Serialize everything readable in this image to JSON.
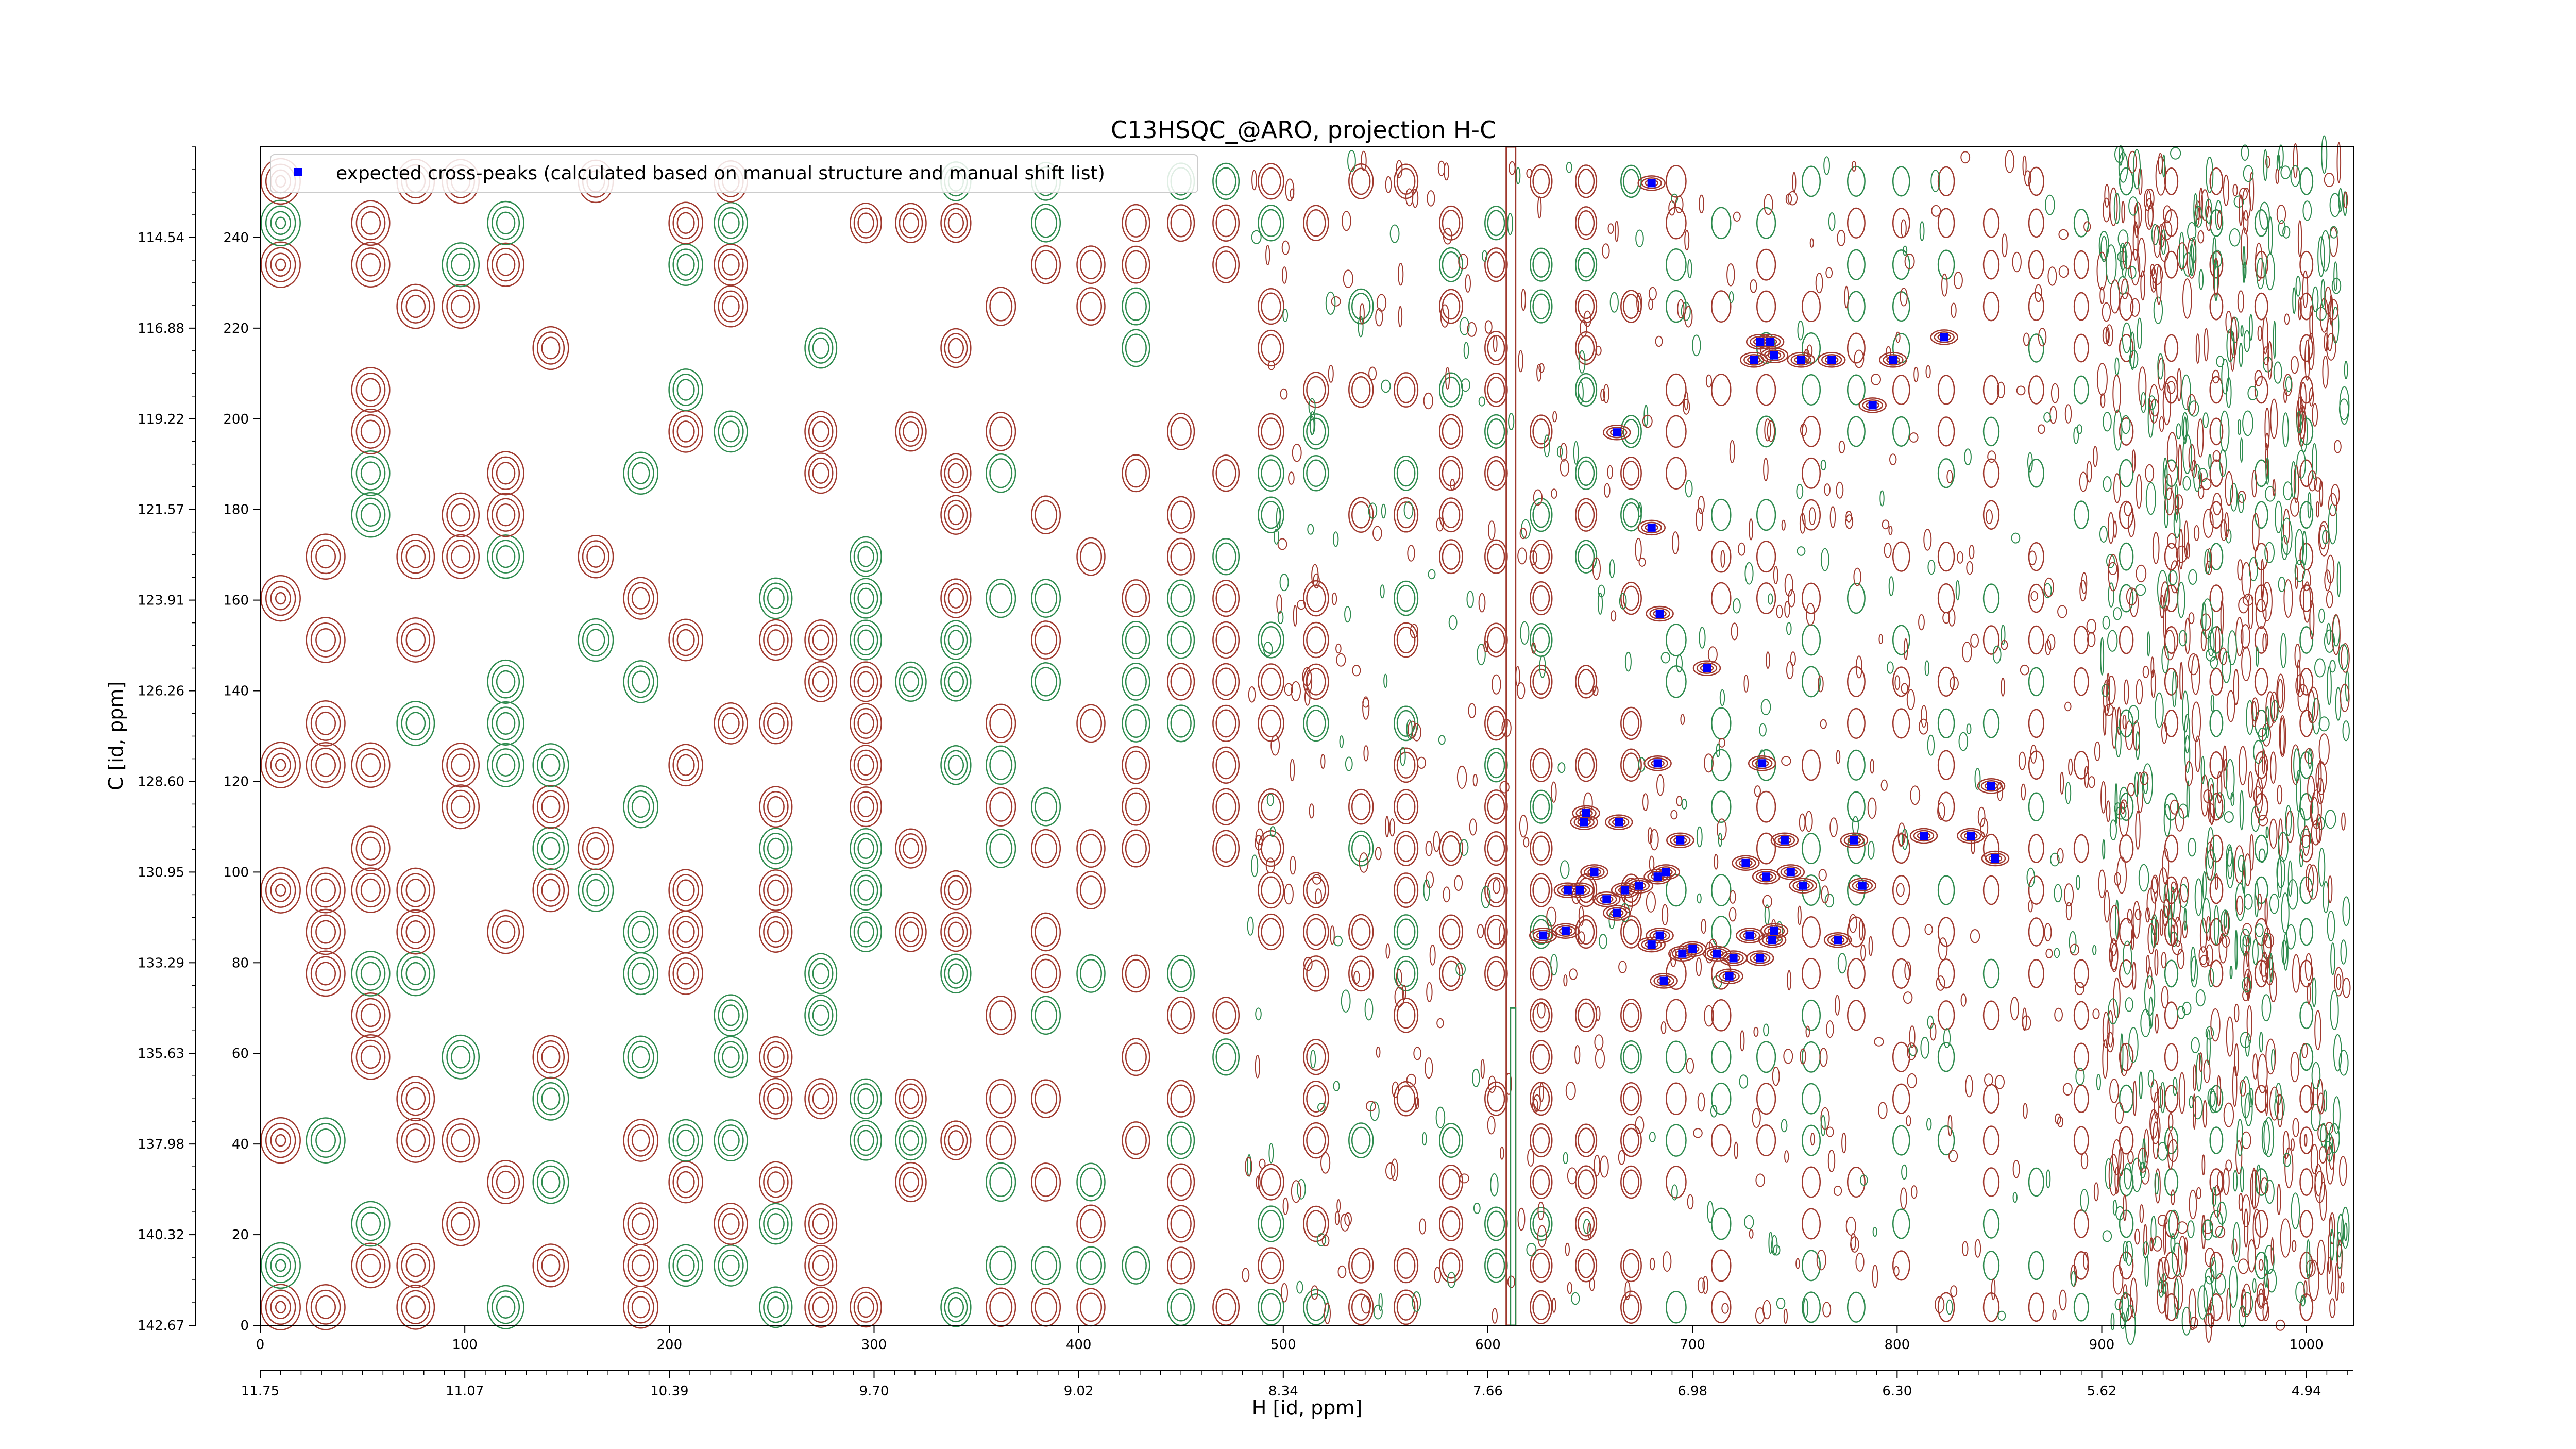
{
  "chart_data": {
    "type": "scatter",
    "title": "C13HSQC_@ARO, projection H-C",
    "xlabel": "H [id, ppm]",
    "ylabel": "C [id, ppm]",
    "x_index_range": [
      0,
      1023
    ],
    "y_index_range": [
      0,
      260
    ],
    "x_index_ticks": [
      "0",
      "100",
      "200",
      "300",
      "400",
      "500",
      "600",
      "700",
      "800",
      "900",
      "1000"
    ],
    "y_index_ticks": [
      "0",
      "20",
      "40",
      "60",
      "80",
      "100",
      "120",
      "140",
      "160",
      "180",
      "200",
      "220",
      "240"
    ],
    "x_ppm_ticks": [
      "11.75",
      "11.07",
      "10.39",
      "9.70",
      "9.02",
      "8.34",
      "7.66",
      "6.98",
      "6.30",
      "5.62",
      "4.94"
    ],
    "y_ppm_ticks": [
      "142.67",
      "140.32",
      "137.98",
      "135.63",
      "133.29",
      "130.95",
      "128.60",
      "126.26",
      "123.91",
      "121.57",
      "119.22",
      "116.88",
      "114.54"
    ],
    "legend_position": "upper-left",
    "colors": {
      "positive_contours": "#a0392e",
      "negative_contours": "#2e8b4e",
      "expected_peaks": "#0000ff"
    },
    "series": [
      {
        "name": "expected cross-peaks (calculated based on manual structure and manual shift list)",
        "marker": "square",
        "color": "#0000ff",
        "points": [
          [
            680,
            252
          ],
          [
            823,
            218
          ],
          [
            733,
            217
          ],
          [
            738,
            217
          ],
          [
            730,
            213
          ],
          [
            740,
            214
          ],
          [
            753,
            213
          ],
          [
            768,
            213
          ],
          [
            798,
            213
          ],
          [
            788,
            203
          ],
          [
            663,
            197
          ],
          [
            680,
            176
          ],
          [
            684,
            157
          ],
          [
            707,
            145
          ],
          [
            683,
            124
          ],
          [
            734,
            124
          ],
          [
            846,
            119
          ],
          [
            648,
            113
          ],
          [
            647,
            111
          ],
          [
            664,
            111
          ],
          [
            694,
            107
          ],
          [
            813,
            108
          ],
          [
            836,
            108
          ],
          [
            779,
            107
          ],
          [
            745,
            107
          ],
          [
            726,
            102
          ],
          [
            748,
            100
          ],
          [
            736,
            99
          ],
          [
            687,
            100
          ],
          [
            683,
            99
          ],
          [
            652,
            100
          ],
          [
            645,
            96
          ],
          [
            639,
            96
          ],
          [
            667,
            96
          ],
          [
            658,
            94
          ],
          [
            754,
            97
          ],
          [
            783,
            97
          ],
          [
            848,
            103
          ],
          [
            663,
            91
          ],
          [
            674,
            97
          ],
          [
            638,
            87
          ],
          [
            627,
            86
          ],
          [
            684,
            86
          ],
          [
            740,
            87
          ],
          [
            728,
            86
          ],
          [
            771,
            85
          ],
          [
            739,
            85
          ],
          [
            700,
            83
          ],
          [
            680,
            84
          ],
          [
            695,
            82
          ],
          [
            733,
            81
          ],
          [
            712,
            82
          ],
          [
            720,
            81
          ],
          [
            686,
            76
          ],
          [
            718,
            77
          ]
        ]
      }
    ]
  }
}
